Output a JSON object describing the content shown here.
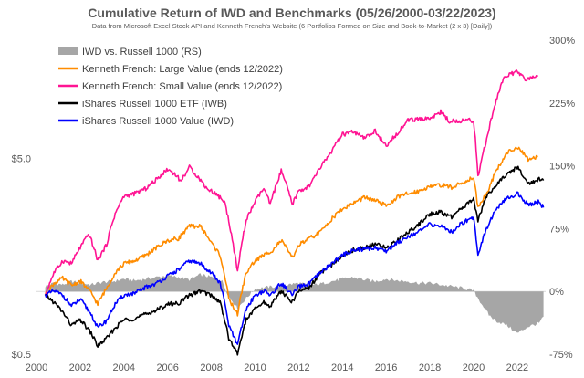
{
  "chart_data": {
    "type": "line",
    "title": "Cumulative Return of IWD and Benchmarks (05/26/2000-03/22/2023)",
    "subtitle": "Data from Microsoft Excel Stock API and Kenneth French's Website (6 Portfolios Formed on Size and Book-to-Market (2 x 3) [Daily])",
    "x_ticks": [
      "2000",
      "2002",
      "2004",
      "2006",
      "2008",
      "2010",
      "2012",
      "2014",
      "2016",
      "2018",
      "2020",
      "2022"
    ],
    "x_range": [
      2000.0,
      2023.3
    ],
    "y_left": {
      "scale": "log",
      "range": [
        0.5,
        20
      ],
      "ticks": [
        {
          "value": 5.0,
          "label": "$5.0"
        },
        {
          "value": 0.5,
          "label": "$0.5"
        }
      ]
    },
    "y_right": {
      "scale": "linear",
      "range": [
        -75,
        300
      ],
      "ticks": [
        {
          "value": 300,
          "label": "300%"
        },
        {
          "value": 225,
          "label": "225%"
        },
        {
          "value": 150,
          "label": "150%"
        },
        {
          "value": 75,
          "label": "75%"
        },
        {
          "value": 0,
          "label": "0%"
        },
        {
          "value": -75,
          "label": "-75%"
        }
      ]
    },
    "legend_position": "top-left",
    "series": [
      {
        "name": "IWD vs. Russell 1000 (RS)",
        "type": "area",
        "axis": "right",
        "color": "#a6a6a6",
        "x": [
          2000.4,
          2000.8,
          2001.2,
          2001.6,
          2002.0,
          2002.5,
          2003.0,
          2003.5,
          2004.0,
          2004.5,
          2005.0,
          2005.5,
          2006.0,
          2006.5,
          2007.0,
          2007.5,
          2008.0,
          2008.5,
          2008.8,
          2009.2,
          2009.6,
          2010.0,
          2010.5,
          2011.0,
          2011.5,
          2012.0,
          2012.5,
          2013.0,
          2013.5,
          2014.0,
          2014.5,
          2015.0,
          2015.5,
          2016.0,
          2016.5,
          2017.0,
          2017.5,
          2018.0,
          2018.5,
          2019.0,
          2019.5,
          2020.0,
          2020.3,
          2020.7,
          2021.0,
          2021.5,
          2022.0,
          2022.5,
          2023.0,
          2023.2
        ],
        "values": [
          6,
          10,
          8,
          12,
          10,
          8,
          11,
          12,
          15,
          13,
          15,
          17,
          19,
          17,
          14,
          20,
          17,
          12,
          -6,
          -20,
          -8,
          3,
          5,
          6,
          8,
          10,
          7,
          9,
          12,
          15,
          17,
          14,
          12,
          15,
          13,
          12,
          10,
          10,
          8,
          6,
          4,
          1,
          -12,
          -28,
          -35,
          -40,
          -50,
          -42,
          -38,
          -30
        ]
      },
      {
        "name": "Kenneth French: Large Value (ends 12/2022)",
        "type": "line",
        "axis": "left",
        "color": "#ff8c00",
        "x": [
          2000.4,
          2000.8,
          2001.2,
          2001.6,
          2002.0,
          2002.5,
          2002.8,
          2003.2,
          2003.6,
          2004.0,
          2004.5,
          2005.0,
          2005.5,
          2006.0,
          2006.5,
          2007.0,
          2007.5,
          2008.0,
          2008.4,
          2008.8,
          2009.2,
          2009.6,
          2010.0,
          2010.4,
          2010.8,
          2011.2,
          2011.7,
          2012.0,
          2012.5,
          2013.0,
          2013.5,
          2014.0,
          2014.5,
          2015.0,
          2015.5,
          2016.0,
          2016.5,
          2017.0,
          2017.5,
          2018.0,
          2018.5,
          2019.0,
          2019.5,
          2020.0,
          2020.2,
          2020.6,
          2021.0,
          2021.5,
          2022.0,
          2022.5,
          2022.95
        ],
        "values": [
          1.0,
          1.15,
          1.22,
          1.12,
          1.18,
          1.03,
          0.9,
          1.08,
          1.3,
          1.45,
          1.5,
          1.6,
          1.75,
          1.9,
          1.95,
          2.25,
          2.25,
          1.85,
          1.6,
          0.95,
          0.8,
          1.3,
          1.5,
          1.6,
          1.7,
          1.9,
          1.55,
          1.8,
          1.95,
          2.1,
          2.45,
          2.75,
          2.95,
          3.15,
          3.05,
          2.85,
          3.15,
          3.3,
          3.4,
          3.6,
          3.65,
          3.55,
          3.75,
          4.0,
          2.8,
          3.3,
          4.2,
          5.3,
          5.7,
          4.9,
          5.1
        ]
      },
      {
        "name": "Kenneth French: Small Value (ends 12/2022)",
        "type": "line",
        "axis": "left",
        "color": "#ff1493",
        "x": [
          2000.4,
          2000.8,
          2001.2,
          2001.6,
          2002.0,
          2002.4,
          2002.8,
          2003.2,
          2003.6,
          2004.0,
          2004.5,
          2005.0,
          2005.5,
          2006.0,
          2006.4,
          2006.6,
          2007.0,
          2007.4,
          2007.8,
          2008.2,
          2008.6,
          2009.0,
          2009.2,
          2009.6,
          2010.0,
          2010.4,
          2010.7,
          2011.2,
          2011.7,
          2012.0,
          2012.5,
          2013.0,
          2013.5,
          2014.0,
          2014.5,
          2015.0,
          2015.5,
          2016.0,
          2016.5,
          2017.0,
          2017.5,
          2018.0,
          2018.5,
          2018.9,
          2019.5,
          2020.0,
          2020.2,
          2020.6,
          2021.0,
          2021.4,
          2022.0,
          2022.4,
          2022.95
        ],
        "values": [
          1.0,
          1.3,
          1.5,
          1.45,
          1.75,
          2.05,
          1.5,
          1.8,
          2.6,
          3.2,
          3.3,
          3.5,
          3.9,
          4.4,
          4.1,
          3.8,
          4.5,
          4.0,
          3.5,
          3.3,
          3.0,
          1.8,
          1.3,
          2.4,
          3.0,
          3.5,
          2.9,
          4.3,
          2.9,
          3.4,
          3.6,
          4.5,
          5.4,
          6.6,
          6.8,
          6.3,
          6.9,
          5.7,
          6.7,
          7.8,
          7.9,
          8.0,
          8.6,
          7.7,
          7.8,
          7.8,
          4.0,
          6.2,
          9.5,
          13.0,
          13.8,
          12.5,
          13.2
        ]
      },
      {
        "name": "iShares Russell 1000 ETF (IWB)",
        "type": "line",
        "axis": "left",
        "color": "#000000",
        "x": [
          2000.4,
          2000.8,
          2001.2,
          2001.6,
          2002.0,
          2002.5,
          2002.8,
          2003.2,
          2003.6,
          2004.0,
          2004.5,
          2005.0,
          2005.5,
          2006.0,
          2006.5,
          2007.0,
          2007.5,
          2008.0,
          2008.4,
          2008.8,
          2009.2,
          2009.6,
          2010.0,
          2010.4,
          2010.7,
          2011.2,
          2011.7,
          2012.0,
          2012.5,
          2013.0,
          2013.5,
          2014.0,
          2014.5,
          2015.0,
          2015.5,
          2016.0,
          2016.5,
          2017.0,
          2017.5,
          2018.0,
          2018.5,
          2019.0,
          2019.5,
          2020.0,
          2020.2,
          2020.6,
          2021.0,
          2021.5,
          2022.0,
          2022.5,
          2023.0,
          2023.2
        ],
        "values": [
          1.0,
          0.92,
          0.82,
          0.7,
          0.75,
          0.64,
          0.55,
          0.6,
          0.68,
          0.75,
          0.76,
          0.8,
          0.84,
          0.9,
          0.91,
          1.0,
          1.05,
          1.0,
          0.92,
          0.6,
          0.5,
          0.75,
          0.85,
          0.92,
          0.88,
          1.05,
          0.92,
          1.05,
          1.1,
          1.3,
          1.42,
          1.6,
          1.7,
          1.75,
          1.82,
          1.75,
          1.9,
          2.1,
          2.3,
          2.6,
          2.65,
          2.5,
          2.8,
          3.1,
          2.4,
          3.2,
          3.6,
          4.1,
          4.5,
          3.7,
          3.9,
          3.85
        ]
      },
      {
        "name": "iShares Russell 1000 Value (IWD)",
        "type": "line",
        "axis": "left",
        "color": "#0000ff",
        "x": [
          2000.4,
          2000.8,
          2001.2,
          2001.6,
          2002.0,
          2002.5,
          2002.8,
          2003.2,
          2003.6,
          2004.0,
          2004.5,
          2005.0,
          2005.5,
          2006.0,
          2006.5,
          2007.0,
          2007.5,
          2008.0,
          2008.4,
          2008.8,
          2009.2,
          2009.6,
          2010.0,
          2010.4,
          2010.7,
          2011.2,
          2011.7,
          2012.0,
          2012.5,
          2013.0,
          2013.5,
          2014.0,
          2014.5,
          2015.0,
          2015.5,
          2016.0,
          2016.5,
          2017.0,
          2017.5,
          2018.0,
          2018.5,
          2019.0,
          2019.5,
          2020.0,
          2020.2,
          2020.6,
          2021.0,
          2021.5,
          2022.0,
          2022.5,
          2023.0,
          2023.2
        ],
        "values": [
          1.0,
          1.05,
          1.0,
          0.88,
          0.95,
          0.8,
          0.68,
          0.74,
          0.9,
          1.0,
          1.02,
          1.1,
          1.15,
          1.25,
          1.35,
          1.5,
          1.45,
          1.3,
          1.15,
          0.7,
          0.55,
          0.85,
          1.0,
          1.05,
          1.0,
          1.15,
          1.0,
          1.1,
          1.15,
          1.3,
          1.45,
          1.6,
          1.7,
          1.72,
          1.75,
          1.68,
          1.85,
          2.0,
          2.1,
          2.3,
          2.25,
          2.1,
          2.35,
          2.5,
          1.6,
          2.2,
          2.7,
          3.1,
          3.3,
          2.9,
          3.0,
          2.8
        ]
      }
    ]
  }
}
